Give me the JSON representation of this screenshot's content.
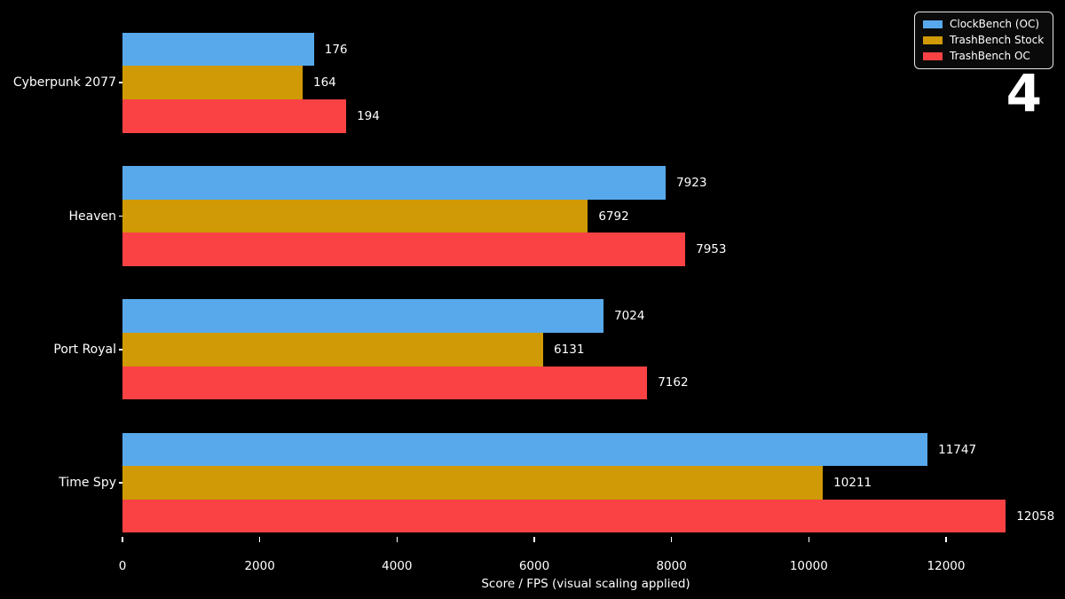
{
  "slide_number": "4",
  "colors": {
    "background": "#000000",
    "text": "#ffffff",
    "legend_border": "#e6e6e6",
    "legend_background": "#0a0a0a",
    "series_blue": "#58A9EC",
    "series_gold": "#CF9A05",
    "series_red": "#FA4244"
  },
  "chart_data": {
    "type": "bar",
    "orientation": "horizontal",
    "title": "",
    "xlabel": "Score / FPS (visual scaling applied)",
    "ylabel": "",
    "categories": [
      "Cyberpunk 2077",
      "Heaven",
      "Port Royal",
      "Time Spy"
    ],
    "series": [
      {
        "name": "ClockBench (OC)",
        "color": "#58A9EC",
        "values": [
          176,
          7923,
          7024,
          11747
        ],
        "bar_visual_lengths": [
          2790,
          7915,
          7010,
          11730
        ]
      },
      {
        "name": "TrashBench Stock",
        "color": "#CF9A05",
        "values": [
          164,
          6792,
          6131,
          10211
        ],
        "bar_visual_lengths": [
          2625,
          6780,
          6130,
          10205
        ]
      },
      {
        "name": "TrashBench OC",
        "color": "#FA4244",
        "values": [
          194,
          7953,
          7162,
          12058
        ],
        "bar_visual_lengths": [
          3260,
          8200,
          7645,
          12870
        ]
      }
    ],
    "x_ticks": [
      0,
      2000,
      4000,
      6000,
      8000,
      10000,
      12000
    ],
    "xlim": [
      0,
      12960
    ],
    "grid": false,
    "legend_position": "upper right"
  }
}
